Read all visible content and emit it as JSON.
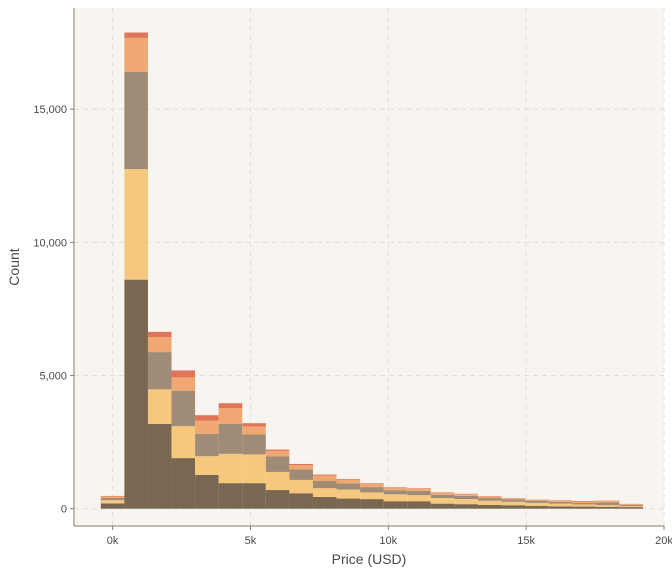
{
  "chart_data": {
    "type": "bar",
    "stacked": true,
    "title": "",
    "xlabel": "Price (USD)",
    "ylabel": "Count",
    "xlim": [
      -1400,
      20000
    ],
    "ylim": [
      -650,
      18800
    ],
    "bin_width": 855,
    "x_ticks": [
      0,
      5000,
      10000,
      15000,
      20000
    ],
    "x_tick_labels": [
      "0k",
      "5k",
      "10k",
      "15k",
      "20k"
    ],
    "y_ticks": [
      0,
      5000,
      10000,
      15000
    ],
    "y_tick_labels": [
      "0",
      "5,000",
      "10,000",
      "15,000"
    ],
    "grid": true,
    "legend": "none",
    "x": [
      0,
      855,
      1710,
      2565,
      3420,
      4275,
      5130,
      5985,
      6840,
      7695,
      8550,
      9405,
      10260,
      11115,
      11970,
      12825,
      13680,
      14535,
      15390,
      16245,
      17100,
      17955,
      18810
    ],
    "series": [
      {
        "color": "#7a6752",
        "values": [
          200,
          8600,
          3180,
          1900,
          1270,
          960,
          960,
          700,
          580,
          440,
          380,
          360,
          280,
          280,
          190,
          170,
          140,
          130,
          100,
          90,
          80,
          70,
          60
        ]
      },
      {
        "color": "#f5c87e",
        "values": [
          120,
          4150,
          1300,
          1200,
          700,
          1100,
          1080,
          680,
          500,
          330,
          340,
          250,
          260,
          230,
          210,
          190,
          160,
          130,
          120,
          100,
          80,
          60,
          40
        ]
      },
      {
        "color": "#a08b76",
        "values": [
          80,
          3650,
          1400,
          1330,
          840,
          1120,
          750,
          580,
          400,
          270,
          230,
          200,
          150,
          160,
          120,
          120,
          100,
          90,
          80,
          60,
          60,
          100,
          40
        ]
      },
      {
        "color": "#f0a872",
        "values": [
          60,
          1280,
          560,
          500,
          500,
          600,
          300,
          210,
          150,
          200,
          130,
          110,
          80,
          80,
          70,
          60,
          50,
          40,
          30,
          40,
          50,
          60,
          30
        ]
      },
      {
        "color": "#e07458",
        "values": [
          20,
          200,
          200,
          260,
          200,
          180,
          120,
          50,
          50,
          40,
          30,
          30,
          30,
          20,
          20,
          20,
          20,
          10,
          10,
          20,
          20,
          10,
          10
        ]
      }
    ]
  }
}
